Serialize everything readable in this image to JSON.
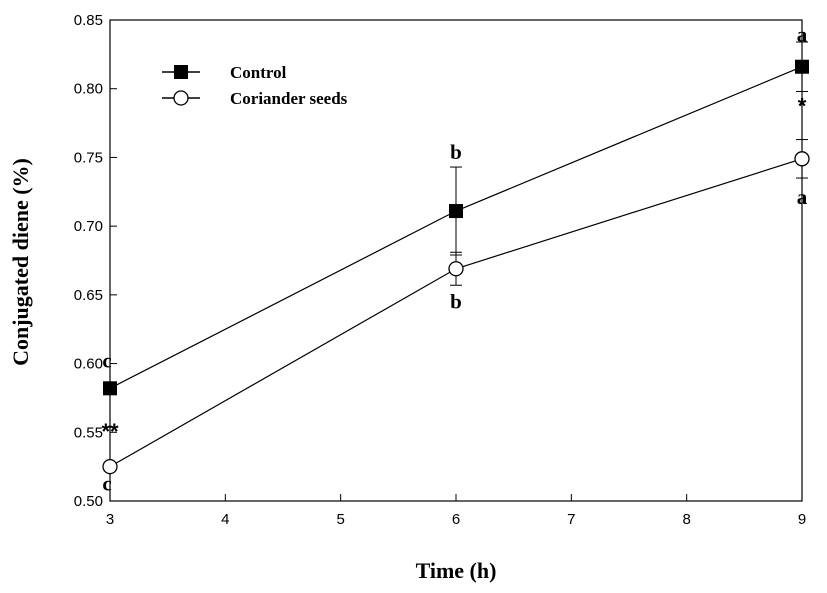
{
  "chart_data": {
    "type": "line",
    "xlabel": "Time (h)",
    "ylabel": "Conjugated diene (%)",
    "xlim": [
      3,
      9
    ],
    "ylim": [
      0.5,
      0.85
    ],
    "x_ticks": [
      "3",
      "4",
      "5",
      "6",
      "7",
      "8",
      "9"
    ],
    "y_ticks": [
      "0.50",
      "0.55",
      "0.60",
      "0.65",
      "0.70",
      "0.75",
      "0.80",
      "0.85"
    ],
    "grid": false,
    "legend_position": "top-left",
    "series": [
      {
        "name": "Control",
        "marker": "filled-square",
        "x": [
          3,
          6,
          9
        ],
        "y": [
          0.582,
          0.711,
          0.816
        ],
        "error": [
          0.0,
          0.032,
          0.018
        ],
        "letters": [
          "c",
          "b",
          "a"
        ]
      },
      {
        "name": "Coriander seeds",
        "marker": "open-circle",
        "x": [
          3,
          6,
          9
        ],
        "y": [
          0.525,
          0.669,
          0.749
        ],
        "error": [
          0.0,
          0.012,
          0.014
        ],
        "letters": [
          "c",
          "b",
          "a"
        ]
      }
    ],
    "significance": [
      {
        "x": 3,
        "label": "**"
      },
      {
        "x": 9,
        "label": "*"
      }
    ]
  }
}
